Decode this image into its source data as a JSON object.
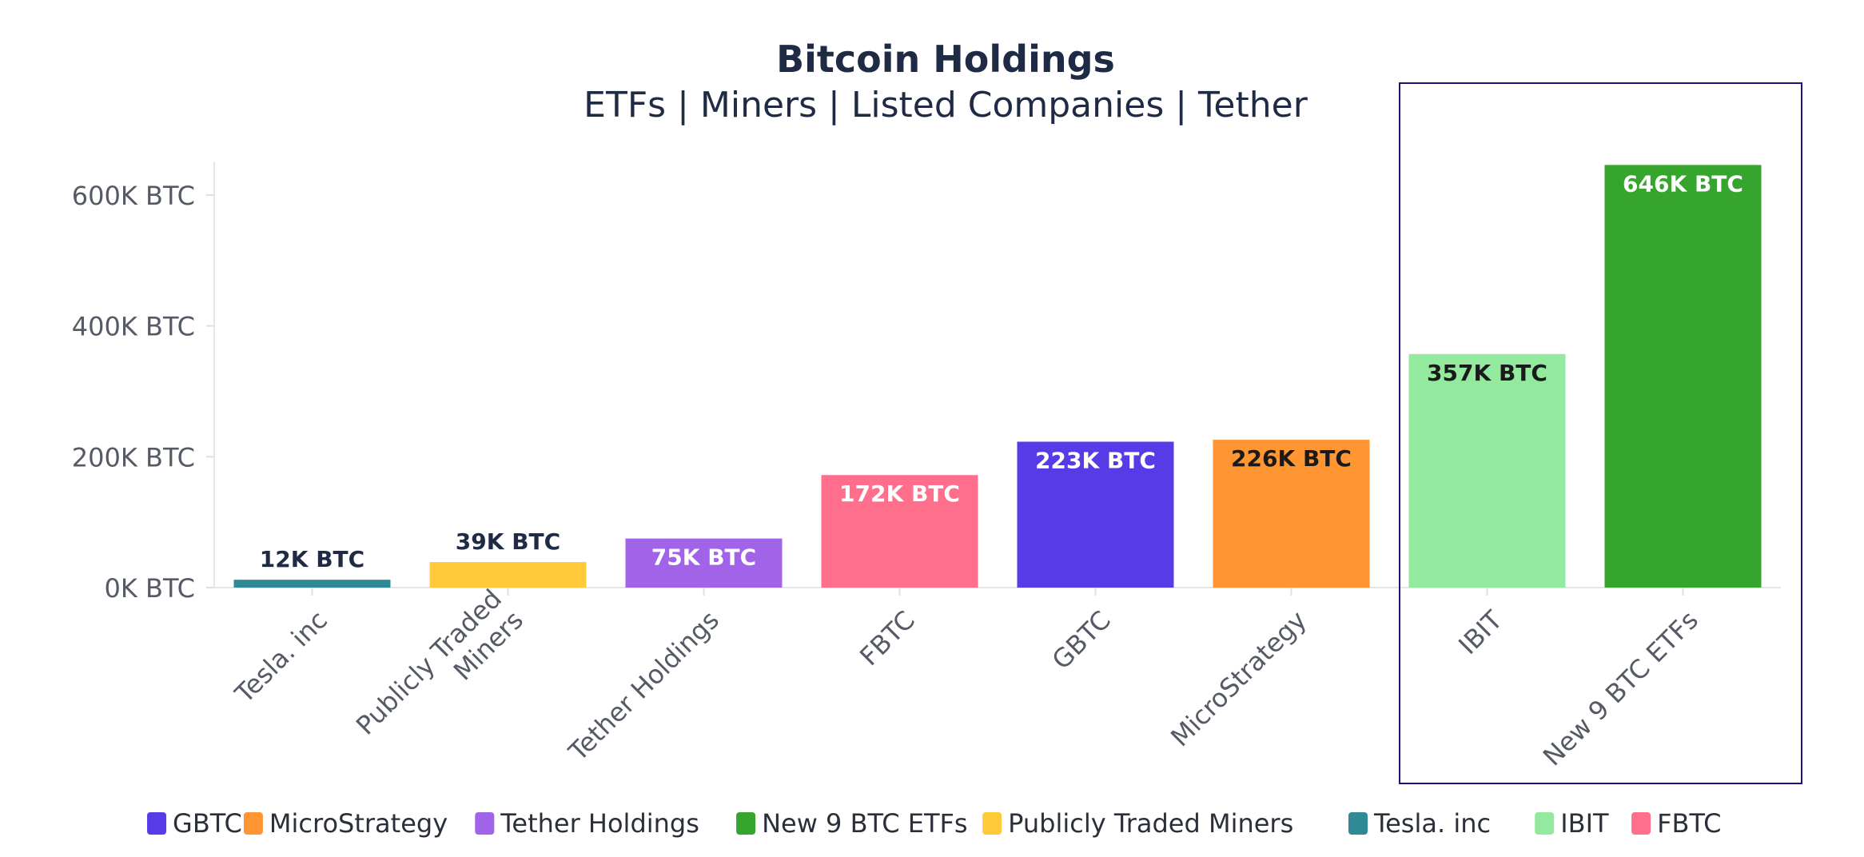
{
  "chart_data": {
    "type": "bar",
    "title": "Bitcoin Holdings",
    "subtitle": "ETFs | Miners | Listed Companies | Tether",
    "xlabel": "",
    "ylabel": "",
    "ylim": [
      0,
      650
    ],
    "yticks": [
      0,
      200,
      400,
      600
    ],
    "ytick_labels": [
      "0K BTC",
      "200K BTC",
      "400K BTC",
      "600K BTC"
    ],
    "categories": [
      "Tesla. inc",
      "Publicly Traded Miners",
      "Tether Holdings",
      "FBTC",
      "GBTC",
      "MicroStrategy",
      "IBIT",
      "New 9 BTC ETFs"
    ],
    "category_lines": [
      [
        "Tesla. inc"
      ],
      [
        "Publicly Traded",
        "Miners"
      ],
      [
        "Tether Holdings"
      ],
      [
        "FBTC"
      ],
      [
        "GBTC"
      ],
      [
        "MicroStrategy"
      ],
      [
        "IBIT"
      ],
      [
        "New 9 BTC ETFs"
      ]
    ],
    "values": [
      12,
      39,
      75,
      172,
      223,
      226,
      357,
      646
    ],
    "data_labels": [
      "12K BTC",
      "39K BTC",
      "75K BTC",
      "172K BTC",
      "223K BTC",
      "226K BTC",
      "357K BTC",
      "646K BTC"
    ],
    "colors": [
      "#2f8a96",
      "#ffc93a",
      "#a163e8",
      "#ff6f8c",
      "#563be6",
      "#ff9632",
      "#93ea9f",
      "#36a52e"
    ],
    "label_colors": [
      "#1f2a44",
      "#1f2a44",
      "#ffffff",
      "#ffffff",
      "#ffffff",
      "#1a1a1a",
      "#1a1a1a",
      "#ffffff"
    ],
    "highlight": {
      "categories": [
        "IBIT",
        "New 9 BTC ETFs"
      ],
      "color": "#1a1475"
    },
    "legend": {
      "position": "bottom",
      "entries": [
        {
          "label": "GBTC",
          "color": "#563be6"
        },
        {
          "label": "MicroStrategy",
          "color": "#ff9632"
        },
        {
          "label": "Tether Holdings",
          "color": "#a163e8"
        },
        {
          "label": "New 9 BTC ETFs",
          "color": "#36a52e"
        },
        {
          "label": "Publicly Traded Miners",
          "color": "#ffc93a"
        },
        {
          "label": "Tesla. inc",
          "color": "#2f8a96"
        },
        {
          "label": "IBIT",
          "color": "#93ea9f"
        },
        {
          "label": "FBTC",
          "color": "#ff6f8c"
        }
      ]
    }
  }
}
